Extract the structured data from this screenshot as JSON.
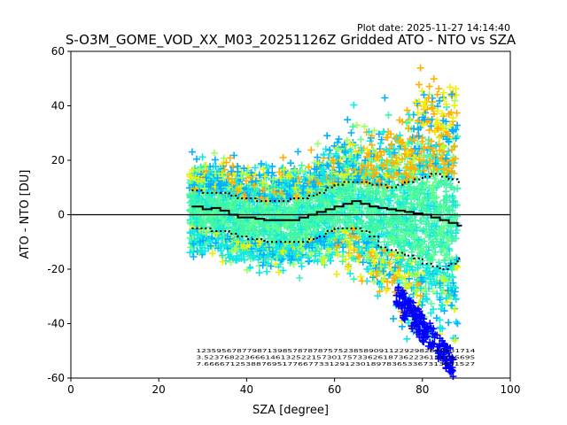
{
  "chart_data": {
    "type": "scatter",
    "title": "S-O3M_GOME_VOD_XX_M03_20251126Z Gridded ATO - NTO vs SZA",
    "plot_date": "Plot date: 2025-11-27 14:14:40",
    "xlabel": "SZA [degree]",
    "ylabel": "ATO - NTO [DU]",
    "xlim": [
      0,
      100
    ],
    "ylim": [
      -60,
      60
    ],
    "xticks": [
      0,
      20,
      40,
      60,
      80,
      100
    ],
    "yticks": [
      -60,
      -40,
      -20,
      0,
      20,
      40,
      60
    ],
    "grid": false,
    "reference_line_y": 0,
    "colors": {
      "blue": "#0000ff",
      "deep_sky": "#00b0ff",
      "cyan": "#10e8e8",
      "aquamarine": "#3ff5a8",
      "mint": "#60ff90",
      "lime": "#a0ff60",
      "yellow": "#f0f000",
      "orange": "#ffb000",
      "black": "#000000"
    },
    "median_curve": {
      "x": [
        27.5,
        30,
        32,
        34,
        36,
        38,
        40,
        42,
        44,
        46,
        48,
        50,
        52,
        54,
        56,
        58,
        60,
        62,
        64,
        66,
        68,
        70,
        72,
        74,
        76,
        78,
        80,
        82,
        84,
        86,
        88
      ],
      "y": [
        3,
        2,
        2.5,
        1.5,
        0,
        -1,
        -1,
        -1.5,
        -2,
        -2,
        -2,
        -2,
        -1,
        0,
        1,
        2,
        3,
        4,
        5,
        4,
        3,
        2.5,
        2,
        1.5,
        1,
        0.5,
        0,
        -1,
        -2,
        -3,
        -4
      ]
    },
    "upper_percentile_curve": {
      "x": [
        27.5,
        30,
        32,
        34,
        36,
        38,
        40,
        42,
        44,
        46,
        48,
        50,
        52,
        54,
        56,
        58,
        60,
        62,
        64,
        66,
        68,
        70,
        72,
        74,
        76,
        78,
        80,
        82,
        84,
        86,
        88
      ],
      "y": [
        9,
        8,
        8,
        8,
        7,
        6,
        6,
        5,
        5,
        5,
        5,
        6,
        6,
        7,
        8,
        10,
        11,
        12,
        12,
        12,
        11,
        11,
        10,
        11,
        12,
        13,
        14,
        15,
        14,
        13,
        12
      ]
    },
    "lower_percentile_curve": {
      "x": [
        27.5,
        30,
        32,
        34,
        36,
        38,
        40,
        42,
        44,
        46,
        48,
        50,
        52,
        54,
        56,
        58,
        60,
        62,
        64,
        66,
        68,
        70,
        72,
        74,
        76,
        78,
        80,
        82,
        84,
        86,
        88
      ],
      "y": [
        -5,
        -5,
        -6,
        -6,
        -7,
        -8,
        -9,
        -9,
        -10,
        -10,
        -10,
        -10,
        -10,
        -9,
        -8,
        -6,
        -5,
        -5,
        -5,
        -6,
        -8,
        -12,
        -13,
        -14,
        -15,
        -16,
        -18,
        -19,
        -20,
        -18,
        -16
      ]
    },
    "count_rows": [
      "1235956787798713985787878757523858909112292982822131714",
      "3.52376822366614613252215730175733626187362236151195695",
      "7.6666712538876951776677331291230189783653367313531527"
    ]
  }
}
